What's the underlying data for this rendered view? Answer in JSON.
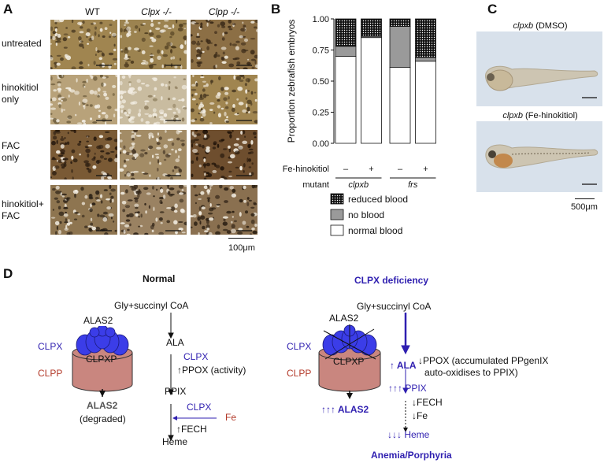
{
  "panel_a": {
    "label": "A",
    "columns": [
      "WT",
      "Clpx -/-",
      "Clpp -/-"
    ],
    "rows": [
      "untreated",
      "hinokitiol",
      "only",
      "FAC",
      "only",
      "hinokitiol+",
      "FAC"
    ],
    "scale": "100μm",
    "tiles": [
      {
        "tone": "#a08550",
        "dark": "#4a3a22",
        "density": 0.55
      },
      {
        "tone": "#9c8350",
        "dark": "#4f3d20",
        "density": 0.55
      },
      {
        "tone": "#8c6f45",
        "dark": "#3b2a18",
        "density": 0.65
      },
      {
        "tone": "#b8a27a",
        "dark": "#6a5a3a",
        "density": 0.35
      },
      {
        "tone": "#c9bca0",
        "dark": "#8a7a5a",
        "density": 0.2
      },
      {
        "tone": "#a08550",
        "dark": "#4a3a22",
        "density": 0.55
      },
      {
        "tone": "#7a5a35",
        "dark": "#2a1c10",
        "density": 0.7
      },
      {
        "tone": "#a38c66",
        "dark": "#4a3a28",
        "density": 0.5
      },
      {
        "tone": "#6e4e2e",
        "dark": "#22150a",
        "density": 0.8
      },
      {
        "tone": "#8e7550",
        "dark": "#2a2015",
        "density": 0.65
      },
      {
        "tone": "#9a8262",
        "dark": "#302418",
        "density": 0.6
      },
      {
        "tone": "#8a7050",
        "dark": "#2a1e12",
        "density": 0.65
      }
    ]
  },
  "panel_b": {
    "label": "B",
    "chart_data": {
      "type": "bar",
      "stacked": true,
      "categories": [
        "clpxb −",
        "clpxb +",
        "frs −",
        "frs +"
      ],
      "ylabel": "Proportion zebrafish embryos",
      "ylim": [
        0,
        1
      ],
      "yticks": [
        "0.00",
        "0.25",
        "0.50",
        "0.75",
        "1.00"
      ],
      "treatment_label": "Fe-hinokitiol",
      "treatment_values": [
        "–",
        "+",
        "–",
        "+"
      ],
      "mutant_label": "mutant",
      "mutant_groups": [
        "clpxb",
        "frs"
      ],
      "series": [
        {
          "name": "normal blood",
          "values": [
            0.7,
            0.85,
            0.61,
            0.66
          ],
          "color": "#ffffff"
        },
        {
          "name": "no blood",
          "values": [
            0.08,
            0.01,
            0.33,
            0.03
          ],
          "color": "#9a9a9a"
        },
        {
          "name": "reduced blood",
          "values": [
            0.22,
            0.14,
            0.06,
            0.31
          ],
          "color": "dotted"
        }
      ],
      "legend": [
        "reduced blood",
        "no blood",
        "normal blood"
      ]
    }
  },
  "panel_c": {
    "label": "C",
    "top_caption_gene": "clpxb",
    "top_caption_cond": " (DMSO)",
    "bottom_caption_gene": "clpxb",
    "bottom_caption_cond": " (Fe-hinokitiol)",
    "scale": "500μm"
  },
  "panel_d": {
    "label": "D",
    "normal": {
      "title": "Normal",
      "substrate": "Gly+succinyl CoA",
      "alas2": "ALAS2",
      "clpx": "CLPX",
      "clpp": "CLPP",
      "clpxp": "CLPXP",
      "alas2_out": "ALAS2",
      "degraded": "(degraded)",
      "ala": "ALA",
      "clpx2": "CLPX",
      "ppox": "↑PPOX (activity)",
      "ppix": "PPIX",
      "clpx3": "CLPX",
      "fe": "Fe",
      "fech": "↑FECH",
      "heme": "Heme"
    },
    "deficiency": {
      "title": "CLPX deficiency",
      "substrate": "Gly+succinyl CoA",
      "alas2": "ALAS2",
      "clpx": "CLPX",
      "clpp": "CLPP",
      "clpxp": "CLPXP",
      "alas2_out": "↑↑↑ ALAS2",
      "ala": "↑ ALA",
      "ppox1": "↓PPOX (accumulated PPgenIX",
      "ppox2": "auto-oxidises to PPIX)",
      "ppix": "↑↑↑ PPIX",
      "fech": "↓FECH",
      "fe": "↓Fe",
      "heme": "↓↓↓ Heme",
      "outcome": "Anemia/Porphyria"
    }
  }
}
